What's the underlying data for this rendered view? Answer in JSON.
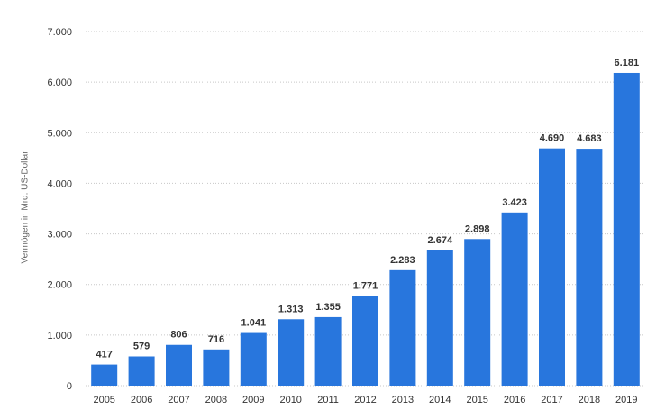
{
  "colors": {
    "bar": "#2876dd",
    "grid": "#c8c8c8",
    "tick_text": "#333333",
    "label_text": "#333333"
  },
  "chart_data": {
    "type": "bar",
    "categories": [
      "2005",
      "2006",
      "2007",
      "2008",
      "2009",
      "2010",
      "2011",
      "2012",
      "2013",
      "2014",
      "2015",
      "2016",
      "2017",
      "2018",
      "2019"
    ],
    "values": [
      417,
      579,
      806,
      716,
      1041,
      1313,
      1355,
      1771,
      2283,
      2674,
      2898,
      3423,
      4690,
      4683,
      6181
    ],
    "value_labels": [
      "417",
      "579",
      "806",
      "716",
      "1.041",
      "1.313",
      "1.355",
      "1.771",
      "2.283",
      "2.674",
      "2.898",
      "3.423",
      "4.690",
      "4.683",
      "6.181"
    ],
    "yticks": [
      0,
      1000,
      2000,
      3000,
      4000,
      5000,
      6000,
      7000
    ],
    "ytick_labels": [
      "0",
      "1.000",
      "2.000",
      "3.000",
      "4.000",
      "5.000",
      "6.000",
      "7.000"
    ],
    "title": "",
    "xlabel": "",
    "ylabel": "Vermögen in Mrd. US-Dollar",
    "ylim": [
      0,
      7000
    ],
    "grid": true,
    "legend": "none"
  }
}
